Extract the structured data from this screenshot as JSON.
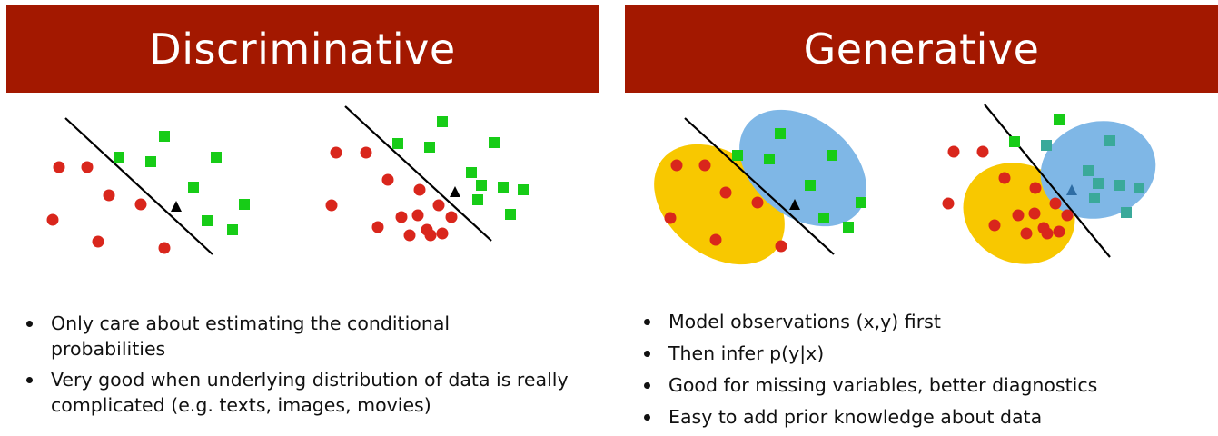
{
  "colors": {
    "banner": "#a31800",
    "class_a": "#d9261c",
    "class_b": "#17cc17",
    "region_a": "#f8c800",
    "region_b": "#7fb7e6",
    "query_point": "#000000"
  },
  "left": {
    "title": "Discriminative",
    "bullets": [
      "Only care about estimating the conditional probabilities",
      "Very good when underlying distribution of data is really complicated (e.g. texts, images, movies)"
    ]
  },
  "right": {
    "title": "Generative",
    "bullets": [
      "Model observations (x,y) first",
      "Then infer p(y|x)",
      "Good for missing variables, better diagnostics",
      "Easy to add prior knowledge about data"
    ]
  }
}
